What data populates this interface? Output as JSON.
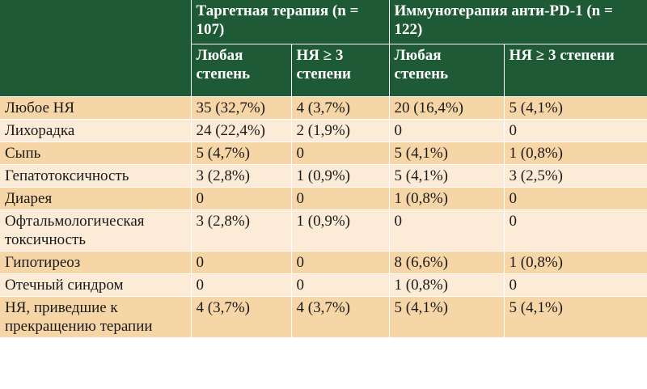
{
  "header": {
    "group1": "Таргетная терапия (n = 107)",
    "group2": "Иммунотерапия анти-PD-1 (n = 122)",
    "sub_any": "Любая степень",
    "sub_grade3": "НЯ ≥ 3 степени"
  },
  "rows": [
    {
      "label": "Любое НЯ",
      "t_any": "35 (32,7%)",
      "t_g3": "4 (3,7%)",
      "i_any": "20 (16,4%)",
      "i_g3": "5 (4,1%)"
    },
    {
      "label": "Лихорадка",
      "t_any": "24 (22,4%)",
      "t_g3": "2 (1,9%)",
      "i_any": "0",
      "i_g3": "0"
    },
    {
      "label": "Сыпь",
      "t_any": "5 (4,7%)",
      "t_g3": "0",
      "i_any": "5 (4,1%)",
      "i_g3": "1 (0,8%)"
    },
    {
      "label": "Гепатотоксичность",
      "t_any": "3 (2,8%)",
      "t_g3": "1 (0,9%)",
      "i_any": "5 (4,1%)",
      "i_g3": "3 (2,5%)"
    },
    {
      "label": "Диарея",
      "t_any": "0",
      "t_g3": "0",
      "i_any": "1 (0,8%)",
      "i_g3": "0"
    },
    {
      "label": "Офтальмологическая токсичность",
      "t_any": "3 (2,8%)",
      "t_g3": "1 (0,9%)",
      "i_any": "0",
      "i_g3": "0"
    },
    {
      "label": "Гипотиреоз",
      "t_any": "0",
      "t_g3": "0",
      "i_any": "8 (6,6%)",
      "i_g3": "1 (0,8%)"
    },
    {
      "label": "Отечный синдром",
      "t_any": "0",
      "t_g3": "0",
      "i_any": "1 (0,8%)",
      "i_g3": "0"
    },
    {
      "label": "НЯ, приведшие к прекращению терапии",
      "t_any": "4 (3,7%)",
      "t_g3": "4 (3,7%)",
      "i_any": "5 (4,1%)",
      "i_g3": "5 (4,1%)"
    }
  ],
  "colors": {
    "header_bg": "#1e5a36",
    "row_odd": "#f6d5a6",
    "row_even": "#fcecd7"
  }
}
